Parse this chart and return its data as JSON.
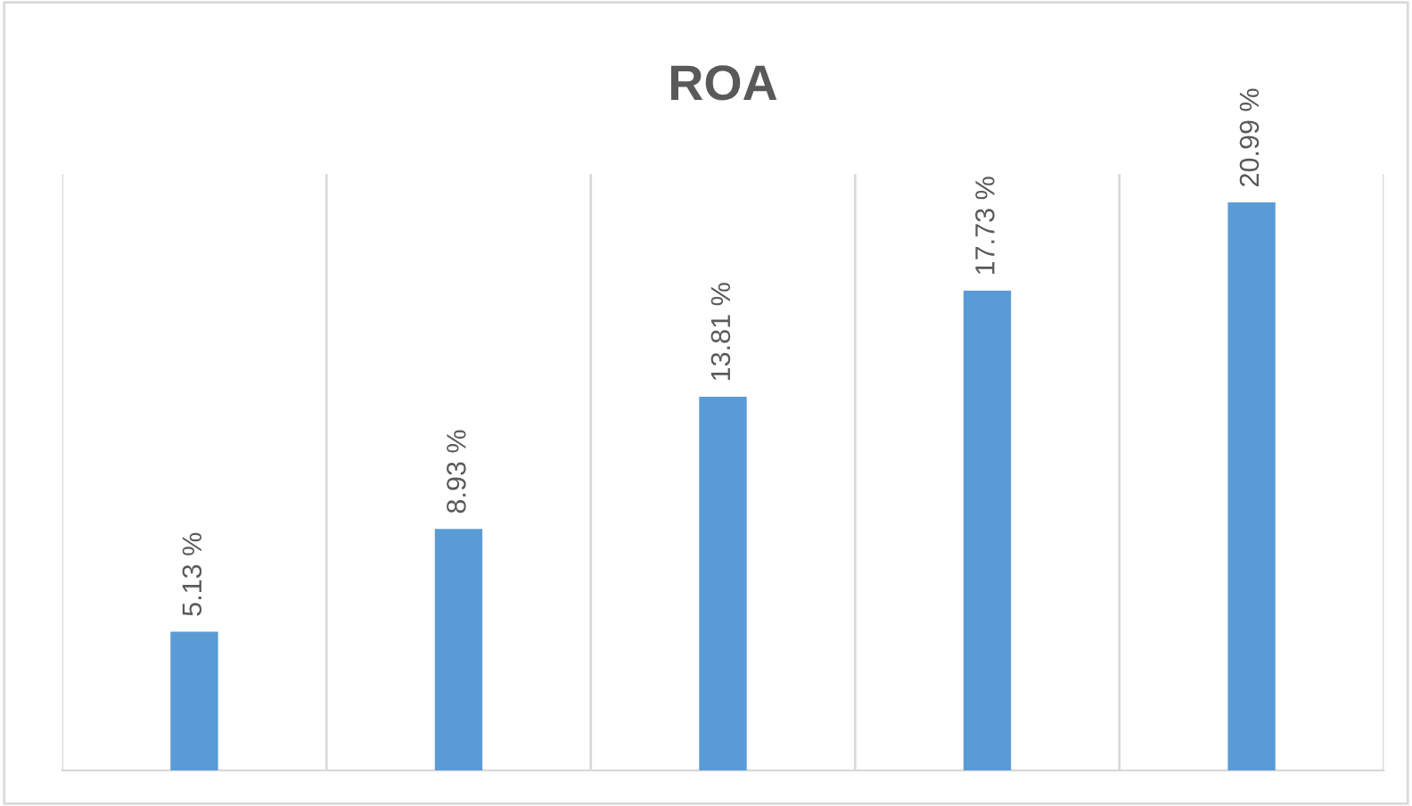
{
  "chart_data": {
    "type": "bar",
    "title": "ROA",
    "categories": [
      null,
      null,
      null,
      null,
      null
    ],
    "values": [
      5.13,
      8.93,
      13.81,
      17.73,
      20.99
    ],
    "value_labels": [
      "5.13 %",
      "8.93 %",
      "13.81 %",
      "17.73 %",
      "20.99 %"
    ],
    "color": "#5b9bd5",
    "grid": "x",
    "legend": false
  }
}
